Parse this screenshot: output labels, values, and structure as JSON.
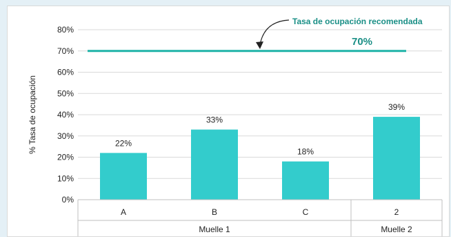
{
  "chart_data": {
    "type": "bar",
    "ylabel": "% Tasa de ocupación",
    "ylim": [
      0,
      80
    ],
    "yticks": [
      "0%",
      "10%",
      "20%",
      "30%",
      "40%",
      "50%",
      "60%",
      "70%",
      "80%"
    ],
    "ytick_values": [
      0,
      10,
      20,
      30,
      40,
      50,
      60,
      70,
      80
    ],
    "categories": [
      "A",
      "B",
      "C",
      "2"
    ],
    "groups": [
      {
        "label": "Muelle 1",
        "categories": [
          "A",
          "B",
          "C"
        ]
      },
      {
        "label": "Muelle 2",
        "categories": [
          "2"
        ]
      }
    ],
    "values": [
      22,
      33,
      18,
      39
    ],
    "data_labels": [
      "22%",
      "33%",
      "18%",
      "39%"
    ],
    "bar_color": "#33cccc",
    "reference_line": {
      "value": 70,
      "color": "#1fb3a8",
      "annotation": "Tasa de ocupación  recomendada",
      "annotation_value": "70%",
      "annotation_color": "#1a8f86"
    },
    "grid": true
  }
}
